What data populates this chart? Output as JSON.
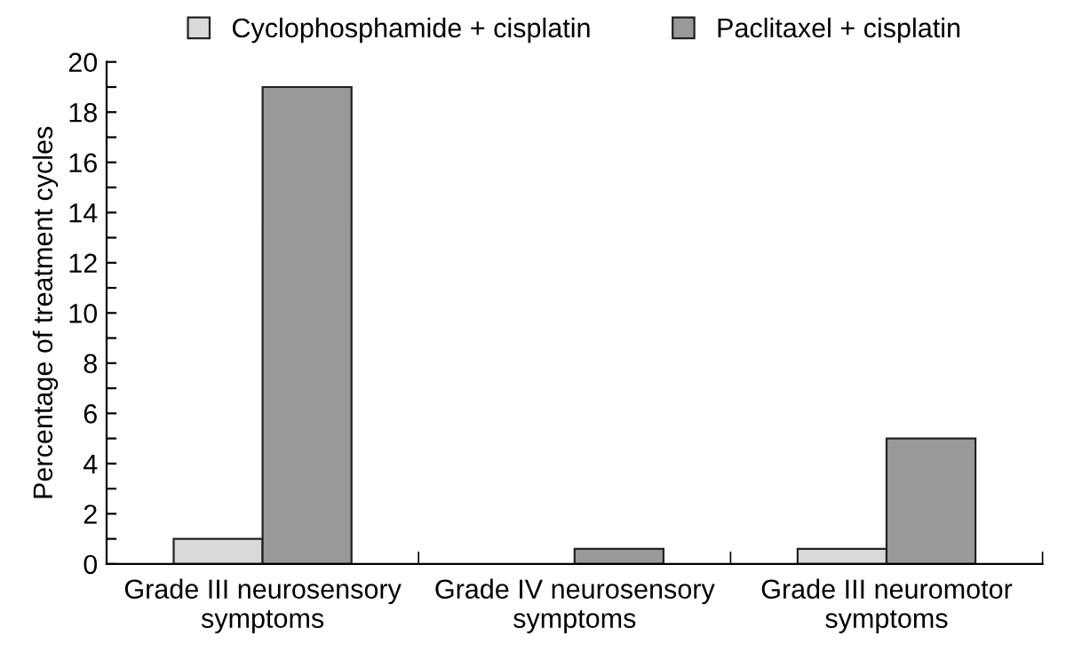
{
  "chart_data": {
    "type": "bar",
    "ylabel": "Percentage of treatment cycles",
    "categories": [
      "Grade III neurosensory\nsymptoms",
      "Grade IV neurosensory\nsymptoms",
      "Grade III neuromotor\nsymptoms"
    ],
    "series": [
      {
        "name": "Cyclophosphamide + cisplatin",
        "color": "#d9d9d9",
        "values": [
          1.0,
          null,
          0.6
        ]
      },
      {
        "name": "Paclitaxel + cisplatin",
        "color": "#999999",
        "values": [
          19,
          0.6,
          5
        ]
      }
    ],
    "ylim": [
      0,
      20
    ],
    "yticks": [
      0,
      {
        "value": 1,
        "label": null
      },
      2,
      {
        "value": 3,
        "label": null
      },
      4,
      {
        "value": 5,
        "label": null
      },
      6,
      {
        "value": 7,
        "label": null
      },
      8,
      {
        "value": 9,
        "label": null
      },
      10,
      {
        "value": 11,
        "label": null
      },
      12,
      {
        "value": 13,
        "label": null
      },
      14,
      {
        "value": 15,
        "label": null
      },
      16,
      {
        "value": 17,
        "label": null
      },
      18,
      {
        "value": 19,
        "label": null
      },
      20
    ],
    "grid": false,
    "legend": "top"
  }
}
